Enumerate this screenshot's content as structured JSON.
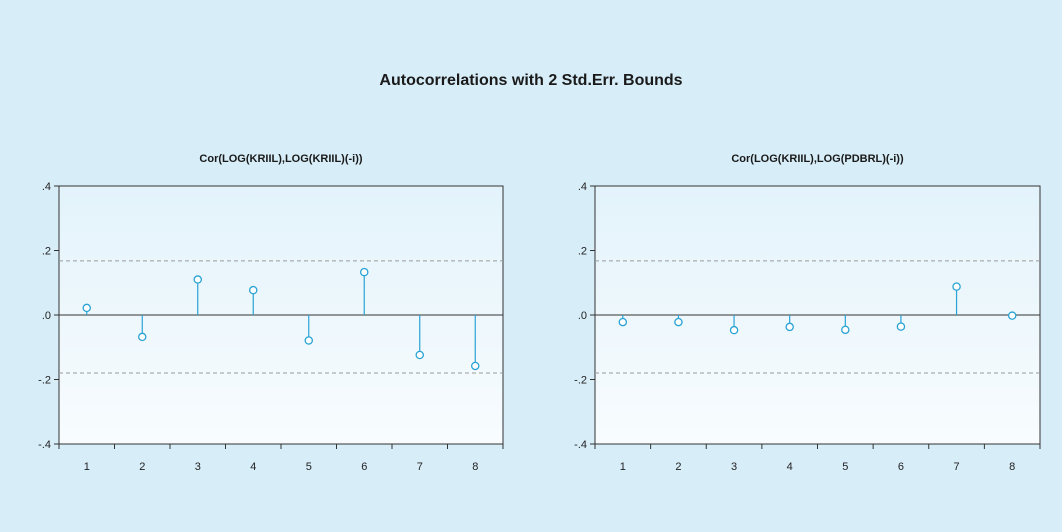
{
  "figure": {
    "title": "Autocorrelations with 2 Std.Err. Bounds"
  },
  "colors": {
    "background": "#d7edf8",
    "plot_top": "#e3f3fb",
    "plot_bottom": "#f8fcfe",
    "stem": "#29a3d4",
    "bound": "#9a9a9a",
    "axis": "#333333"
  },
  "chart_data": [
    {
      "type": "lollipop",
      "title": "Cor(LOG(KRIIL),LOG(KRIIL)(-i))",
      "categories": [
        "1",
        "2",
        "3",
        "4",
        "5",
        "6",
        "7",
        "8"
      ],
      "values": [
        0.022,
        -0.068,
        0.11,
        0.077,
        -0.079,
        0.133,
        -0.124,
        -0.158
      ],
      "bounds": [
        0.168,
        -0.18
      ],
      "ylim": [
        -0.4,
        0.4
      ],
      "yticks": [
        ".4",
        ".2",
        ".0",
        "-.2",
        "-.4"
      ],
      "ytick_values": [
        0.4,
        0.2,
        0.0,
        -0.2,
        -0.4
      ],
      "grid": false
    },
    {
      "type": "lollipop",
      "title": "Cor(LOG(KRIIL),LOG(PDBRL)(-i))",
      "categories": [
        "1",
        "2",
        "3",
        "4",
        "5",
        "6",
        "7",
        "8"
      ],
      "values": [
        -0.022,
        -0.022,
        -0.047,
        -0.037,
        -0.046,
        -0.036,
        0.088,
        -0.002
      ],
      "bounds": [
        0.168,
        -0.18
      ],
      "ylim": [
        -0.4,
        0.4
      ],
      "yticks": [
        ".4",
        ".2",
        ".0",
        "-.2",
        "-.4"
      ],
      "ytick_values": [
        0.4,
        0.2,
        0.0,
        -0.2,
        -0.4
      ],
      "grid": false
    }
  ]
}
